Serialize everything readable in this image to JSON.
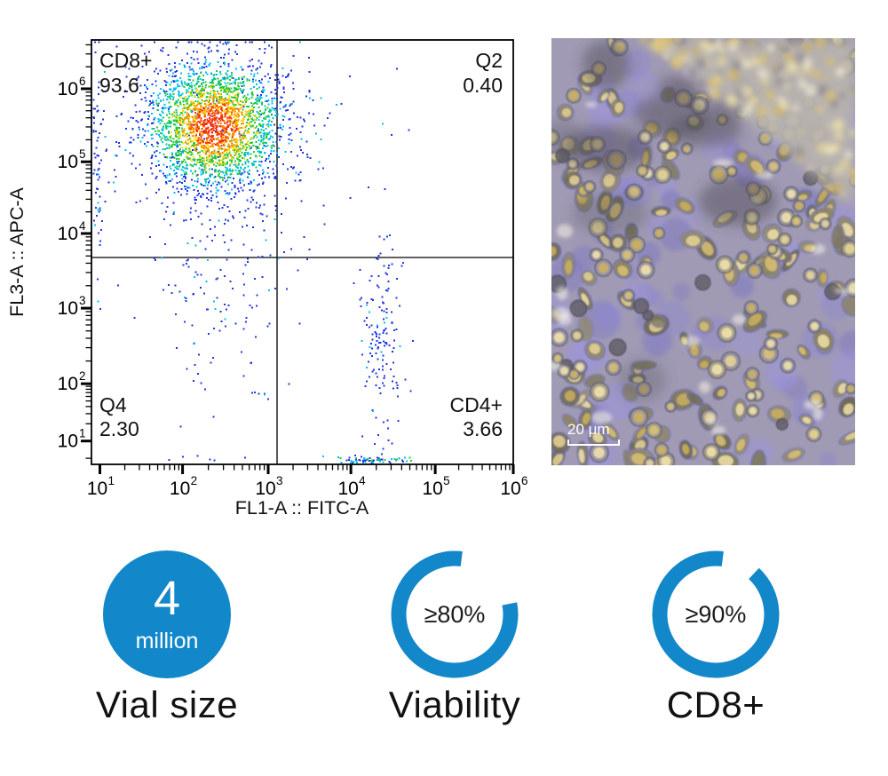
{
  "colors": {
    "accent_blue": "#1287c9",
    "text_dark": "#121212",
    "plot_line": "#000000"
  },
  "chart_data": {
    "type": "scatter",
    "subtype": "flow_cytometry_pseudocolor_density",
    "title": "",
    "xlabel": "FL1-A :: FITC-A",
    "ylabel": "FL3-A :: APC-A",
    "x_scale": "log10",
    "y_scale": "log10",
    "x_range_decades": [
      1,
      6
    ],
    "y_range_decades": [
      1,
      6
    ],
    "x_tick_exponents": [
      1,
      2,
      3,
      4,
      5,
      6
    ],
    "y_tick_exponents": [
      1,
      2,
      3,
      4,
      5,
      6
    ],
    "grid": "off",
    "gates": {
      "x_divider_decade": 3.1,
      "y_divider_decade": 3.7
    },
    "quadrants": [
      {
        "name": "CD8+",
        "value": "93.6",
        "value_num": 93.6,
        "position": "top-left"
      },
      {
        "name": "Q2",
        "value": "0.40",
        "value_num": 0.4,
        "position": "top-right"
      },
      {
        "name": "Q4",
        "value": "2.30",
        "value_num": 2.3,
        "position": "bottom-left"
      },
      {
        "name": "CD4+",
        "value": "3.66",
        "value_num": 3.66,
        "position": "bottom-right"
      }
    ],
    "density_palette": [
      "#2135e0",
      "#00c0ee",
      "#22c83e",
      "#ffd400",
      "#ff8c00",
      "#f23410"
    ],
    "clusters": [
      {
        "id": "cd8-core",
        "fx": 0.29,
        "fy": 0.2,
        "sx": 0.082,
        "sy": 0.076,
        "n": 2450,
        "style": "density"
      },
      {
        "id": "cd8-halo",
        "fx": 0.3,
        "fy": 0.27,
        "sx": 0.135,
        "sy": 0.135,
        "n": 260,
        "style": "blue"
      },
      {
        "id": "cd8-lower-tail",
        "fx": 0.305,
        "fy": 0.56,
        "sx": 0.07,
        "sy": 0.17,
        "n": 120,
        "style": "blue"
      },
      {
        "id": "left-edge-pileup",
        "fx": 0.012,
        "fy": 0.3,
        "sx": 0.006,
        "sy": 0.17,
        "n": 55,
        "style": "blue"
      },
      {
        "id": "q2-sparse",
        "fx": 0.62,
        "fy": 0.33,
        "sx": 0.11,
        "sy": 0.17,
        "n": 16,
        "style": "blue"
      },
      {
        "id": "cd4-column",
        "fx": 0.685,
        "fy": 0.7,
        "sx": 0.023,
        "sy": 0.115,
        "n": 150,
        "style": "blue"
      },
      {
        "id": "bottom-pileup",
        "fx": 0.65,
        "fy": 0.988,
        "sx": 0.05,
        "sy": 0.004,
        "n": 60,
        "style": "mixed"
      },
      {
        "id": "bottom-left-sparse",
        "fx": 0.26,
        "fy": 0.985,
        "sx": 0.07,
        "sy": 0.005,
        "n": 6,
        "style": "blue"
      }
    ],
    "layout": {
      "legend": "none",
      "x_decade_fractions": {
        "1": 0.02,
        "2": 0.216,
        "3": 0.419,
        "4": 0.615,
        "5": 0.815,
        "6": 1.0
      },
      "y_decade_fractions": {
        "6": 0.115,
        "5": 0.287,
        "4": 0.456,
        "3": 0.632,
        "2": 0.81,
        "1": 0.945
      },
      "x_divider_fraction": 0.44,
      "y_divider_fraction": 0.5125
    }
  },
  "micrograph": {
    "description": "phase-contrast micrograph of a dense CD8+ T-cell culture",
    "scale_bar_label": "20 μm"
  },
  "stats": [
    {
      "id": "vial-size",
      "style": "filled-circle",
      "value_line1": "4",
      "value_line2": "million",
      "label": "Vial size",
      "percent": 100
    },
    {
      "id": "viability",
      "style": "ring",
      "value": "≥80%",
      "label": "Viability",
      "percent": 80
    },
    {
      "id": "cd8-purity",
      "style": "ring",
      "value": "≥90%",
      "label": "CD8+",
      "percent": 90
    }
  ]
}
